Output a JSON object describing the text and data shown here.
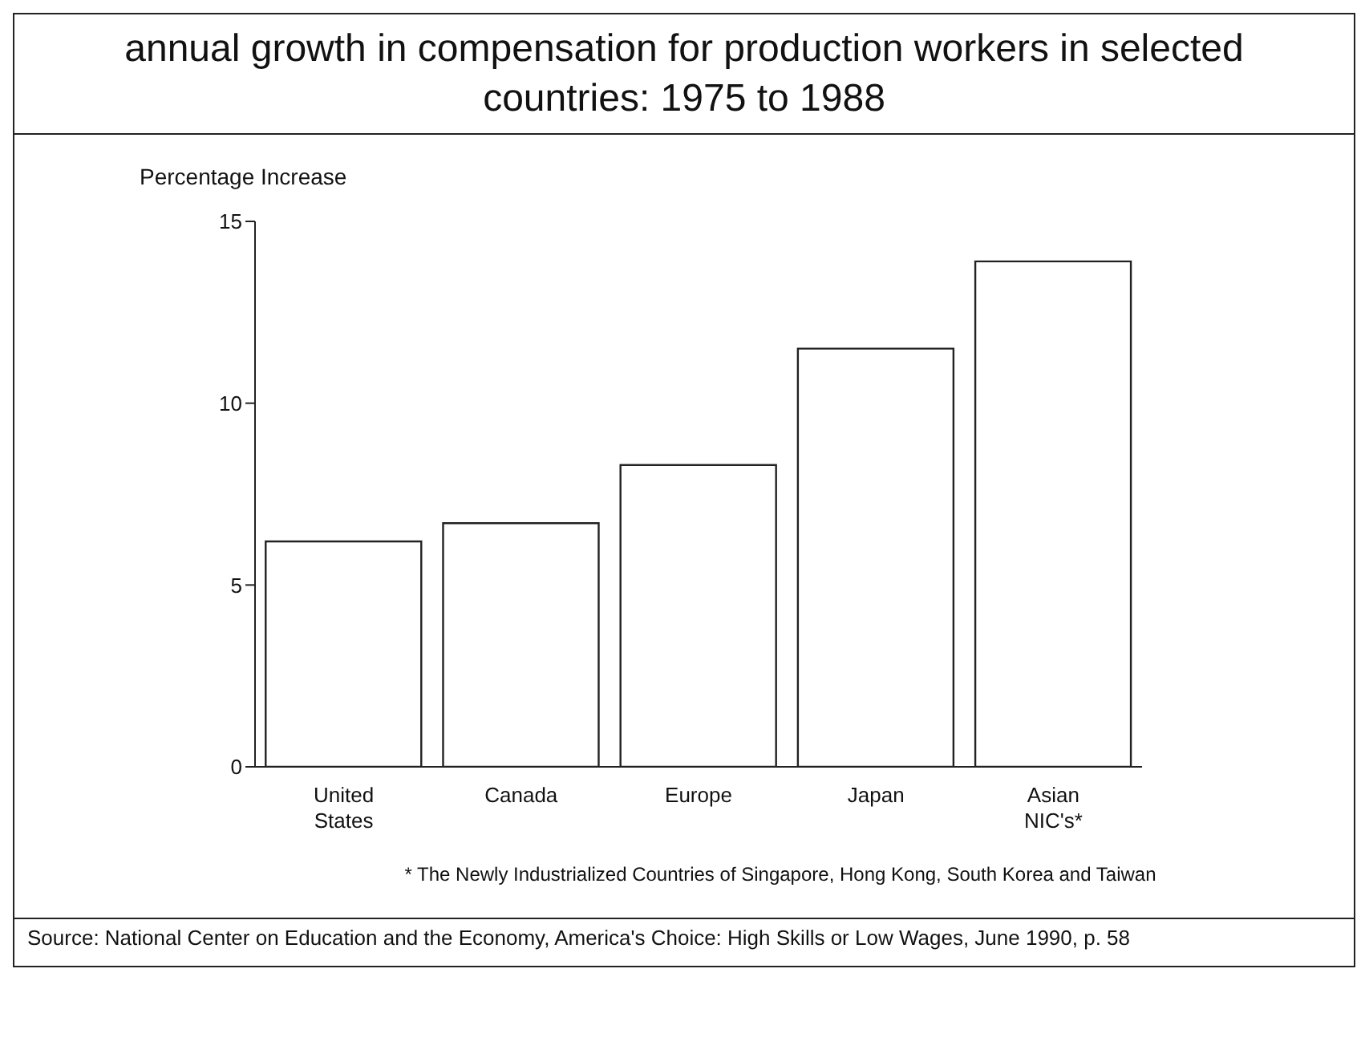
{
  "chart_data": {
    "type": "bar",
    "title": "annual growth in compensation for production workers in selected countries: 1975 to 1988",
    "ylabel": "Percentage Increase",
    "categories": [
      "United States",
      "Canada",
      "Europe",
      "Japan",
      "Asian NIC's*"
    ],
    "values": [
      6.2,
      6.7,
      8.3,
      11.5,
      13.9
    ],
    "color": "#ffffff",
    "ylim": [
      0,
      15
    ],
    "yticks": [
      0,
      5,
      10,
      15
    ],
    "grid": false,
    "annotations": [
      "* The Newly Industrialized Countries of Singapore, Hong Kong, South Korea and Taiwan",
      "Source: National Center on Education and the Economy, America's Choice: High Skills or Low Wages, June 1990, p. 58"
    ]
  }
}
